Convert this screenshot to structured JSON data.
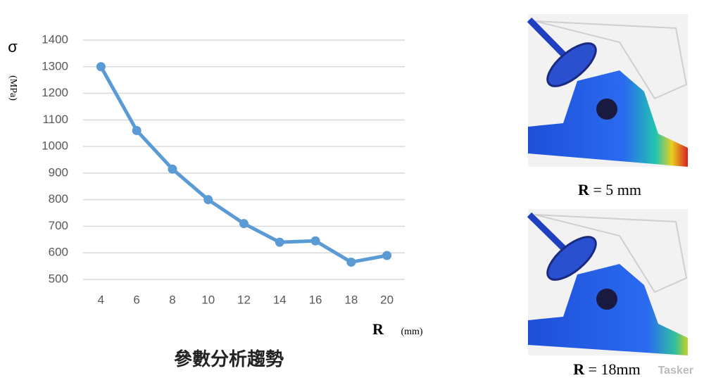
{
  "chart_data": {
    "type": "line",
    "y_symbol": "σ",
    "y_unit": "(MPa)",
    "x_symbol": "R",
    "x_unit": "(mm)",
    "caption": "參數分析趨勢",
    "categories": [
      "4",
      "6",
      "8",
      "10",
      "12",
      "14",
      "16",
      "18",
      "20"
    ],
    "series": [
      {
        "name": "σ",
        "color": "#5b9bd5",
        "values": [
          1300,
          1060,
          915,
          800,
          710,
          640,
          645,
          565,
          590
        ]
      }
    ],
    "ylim": [
      500,
      1400
    ],
    "yticks": [
      500,
      600,
      700,
      800,
      900,
      1000,
      1100,
      1200,
      1300,
      1400
    ],
    "grid": true
  },
  "figures": [
    {
      "symbol": "R",
      "text": "= 5 mm"
    },
    {
      "symbol": "R",
      "text": "= 18mm"
    }
  ],
  "watermark": "Tasker"
}
